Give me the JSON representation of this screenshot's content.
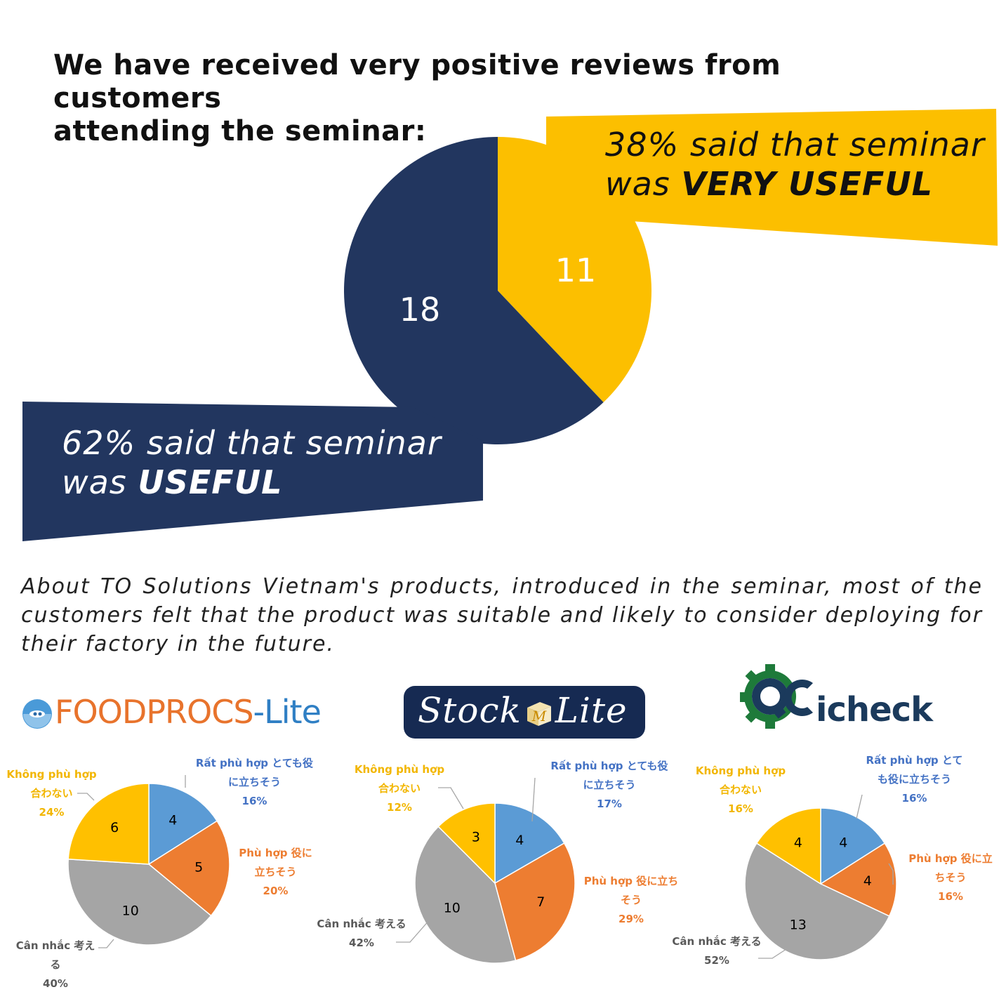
{
  "headline": {
    "line1": "We have received very positive reviews from customers",
    "line2": "attending the seminar:"
  },
  "callouts": {
    "very_useful_prefix_1": "38% said that seminar",
    "very_useful_prefix_2": "was ",
    "very_useful_emph": "VERY USEFUL",
    "useful_prefix_1": "62% said that seminar",
    "useful_prefix_2": "was ",
    "useful_emph": "USEFUL"
  },
  "about_text": "About TO Solutions Vietnam's products, introduced in the seminar, most of the customers felt that the product was suitable and likely to consider deploying for their factory in the future.",
  "logos": {
    "foodprocs_part1": "FOODPROCS",
    "foodprocs_part2": "-Lite",
    "stock_part1": "Stock",
    "stock_mark": "M",
    "stock_part2": "Lite",
    "qc_part1": "QC",
    "qc_part2": "icheck"
  },
  "colors": {
    "navy": "#22365f",
    "gold": "#fcbf00",
    "blue": "#5b9bd5",
    "orange": "#ed7d31",
    "gray": "#a5a5a5",
    "yellow": "#ffc000"
  },
  "chart_data": [
    {
      "type": "pie",
      "title": "",
      "categories": [
        "VERY USEFUL",
        "USEFUL"
      ],
      "values": [
        11,
        18
      ],
      "labels": [
        "11",
        "18"
      ],
      "percent": [
        "38%",
        "62%"
      ],
      "colors": [
        "#fcbf00",
        "#22365f"
      ]
    },
    {
      "type": "pie",
      "title": "FOODPROCS-Lite",
      "values": [
        4,
        5,
        10,
        6
      ],
      "value_labels": [
        "4",
        "5",
        "10",
        "6"
      ],
      "colors": [
        "#5b9bd5",
        "#ed7d31",
        "#a5a5a5",
        "#ffc000"
      ],
      "legend": [
        {
          "lines": [
            "Rất phù hợp  とても役",
            "に立ちそう"
          ],
          "pct": "16%"
        },
        {
          "lines": [
            "Phù hợp  役に",
            "立ちそう"
          ],
          "pct": "20%"
        },
        {
          "lines": [
            "Cân nhắc  考え",
            "る"
          ],
          "pct": "40%"
        },
        {
          "lines": [
            "Không phù hợp",
            "合わない"
          ],
          "pct": "24%"
        }
      ]
    },
    {
      "type": "pie",
      "title": "Stock Lite",
      "values": [
        4,
        7,
        10,
        3
      ],
      "value_labels": [
        "4",
        "7",
        "10",
        "3"
      ],
      "colors": [
        "#5b9bd5",
        "#ed7d31",
        "#a5a5a5",
        "#ffc000"
      ],
      "legend": [
        {
          "lines": [
            "Rất phù hợp  とても役",
            "に立ちそう"
          ],
          "pct": "17%"
        },
        {
          "lines": [
            "Phù hợp  役に立ち",
            "そう"
          ],
          "pct": "29%"
        },
        {
          "lines": [
            "Cân nhắc  考える"
          ],
          "pct": "42%"
        },
        {
          "lines": [
            "Không phù hợp",
            "合わない"
          ],
          "pct": "12%"
        }
      ]
    },
    {
      "type": "pie",
      "title": "QCicheck",
      "values": [
        4,
        4,
        13,
        4
      ],
      "value_labels": [
        "4",
        "4",
        "13",
        "4"
      ],
      "colors": [
        "#5b9bd5",
        "#ed7d31",
        "#a5a5a5",
        "#ffc000"
      ],
      "legend": [
        {
          "lines": [
            "Rất phù hợp  とて",
            "も役に立ちそう"
          ],
          "pct": "16%"
        },
        {
          "lines": [
            "Phù hợp  役に立",
            "ちそう"
          ],
          "pct": "16%"
        },
        {
          "lines": [
            "Cân nhắc  考える"
          ],
          "pct": "52%"
        },
        {
          "lines": [
            "Không phù hợp",
            "合わない"
          ],
          "pct": "16%"
        }
      ]
    }
  ]
}
